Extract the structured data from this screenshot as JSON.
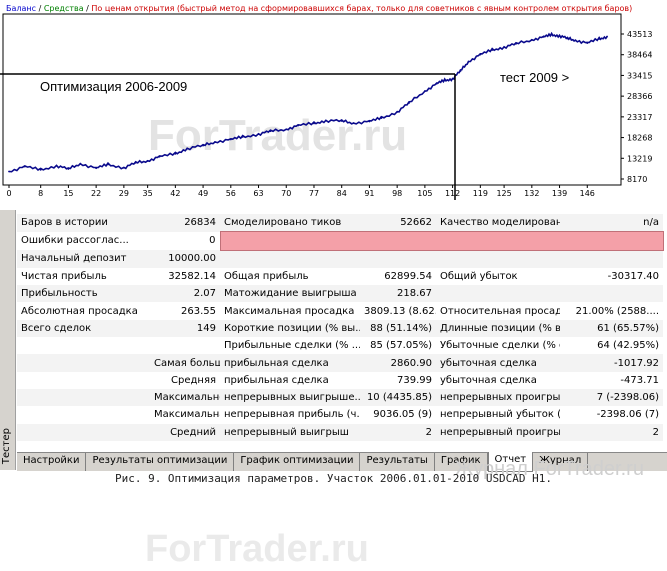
{
  "chart": {
    "legend": {
      "balance": "Баланс",
      "sep1": " / ",
      "equity": "Средства",
      "sep2": " / ",
      "mode": "По ценам открытия (быстрый метод на сформировавшихся барах, только для советников с явным контролем открытия баров)"
    },
    "annotation_left": "Оптимизация 2006-2009",
    "annotation_right": "тест 2009 >",
    "watermark": "ForTrader.ru",
    "colors": {
      "balance_line": "#0a0a8c",
      "axis": "#000000",
      "frame": "#000000"
    }
  },
  "chart_data": {
    "type": "line",
    "x_ticks": [
      "0",
      "8",
      "15",
      "22",
      "29",
      "35",
      "42",
      "49",
      "56",
      "63",
      "70",
      "77",
      "84",
      "91",
      "98",
      "105",
      "112",
      "119",
      "125",
      "132",
      "139",
      "146"
    ],
    "y_ticks": [
      "43513",
      "38464",
      "33415",
      "28366",
      "23317",
      "18268",
      "13219",
      "8170"
    ],
    "ylim": [
      8170,
      43513
    ],
    "xlim": [
      0,
      153
    ],
    "series": [
      {
        "x": [
          0,
          4,
          8,
          12,
          15,
          18,
          22,
          25,
          29,
          32,
          35,
          38,
          42,
          45,
          49,
          52,
          56,
          59,
          63,
          66,
          70,
          73,
          77,
          80,
          84,
          87,
          91,
          94,
          98,
          101,
          105,
          108,
          110,
          112,
          114,
          116,
          119,
          122,
          125,
          128,
          132,
          135,
          137,
          139,
          141,
          143,
          146,
          149,
          151
        ],
        "values": [
          10000,
          11200,
          10400,
          11400,
          10600,
          11900,
          10800,
          11700,
          10900,
          12100,
          12600,
          13600,
          14300,
          15600,
          16300,
          17200,
          17800,
          18400,
          19100,
          19800,
          20300,
          21200,
          21700,
          22400,
          22300,
          21800,
          22200,
          23000,
          24500,
          26700,
          29600,
          31400,
          32200,
          32582,
          34500,
          36800,
          38500,
          39600,
          40300,
          41100,
          42100,
          42800,
          43300,
          43100,
          42400,
          42000,
          41300,
          42300,
          42900
        ]
      }
    ],
    "split_x": 110
  },
  "report": {
    "rows": [
      [
        "Баров в истории",
        "26834",
        "Смоделировано тиков",
        "52662",
        "Качество моделирования",
        "n/a"
      ],
      [
        "Ошибки рассоглас...",
        "0",
        "",
        "",
        "",
        ""
      ],
      [
        "Начальный депозит",
        "10000.00",
        "",
        "",
        "",
        ""
      ],
      [
        "Чистая прибыль",
        "32582.14",
        "Общая прибыль",
        "62899.54",
        "Общий убыток",
        "-30317.40"
      ],
      [
        "Прибыльность",
        "2.07",
        "Матожидание выигрыша",
        "218.67",
        "",
        ""
      ],
      [
        "Абсолютная просадка",
        "263.55",
        "Максимальная просадка",
        "3809.13 (8.62...",
        "Относительная просадка",
        "21.00% (2588...."
      ],
      [
        "Всего сделок",
        "149",
        "Короткие позиции (% вы...",
        "88 (51.14%)",
        "Длинные позиции (% вы...",
        "61 (65.57%)"
      ],
      [
        "",
        "",
        "Прибыльные сделки (% ...",
        "85 (57.05%)",
        "Убыточные сделки (% о...",
        "64 (42.95%)"
      ],
      [
        "",
        "Самая большая",
        "прибыльная сделка",
        "2860.90",
        "убыточная сделка",
        "-1017.92"
      ],
      [
        "",
        "Средняя",
        "прибыльная сделка",
        "739.99",
        "убыточная сделка",
        "-473.71"
      ],
      [
        "",
        "Максимальное количество",
        "непрерывных выигрыше...",
        "10 (4435.85)",
        "непрерывных проигрыш...",
        "7 (-2398.06)"
      ],
      [
        "",
        "Максимальная",
        "непрерывная прибыль (ч...",
        "9036.05 (9)",
        "непрерывный убыток (ч...",
        "-2398.06 (7)"
      ],
      [
        "",
        "Средний",
        "непрерывный выигрыш",
        "2",
        "непрерывный проигрыш",
        "2"
      ]
    ],
    "mid_watermark": "ForTrader.ru"
  },
  "side_tab": "Тестер",
  "tabs": [
    "Настройки",
    "Результаты оптимизации",
    "График оптимизации",
    "Результаты",
    "График",
    "Отчет",
    "Журнал"
  ],
  "active_tab": "Отчет",
  "caption": "Рис. 9. Оптимизация параметров. Участок 2006.01.01-2010 USDCAD H1.",
  "journal_watermark": "Журнал ForTrader.ru"
}
